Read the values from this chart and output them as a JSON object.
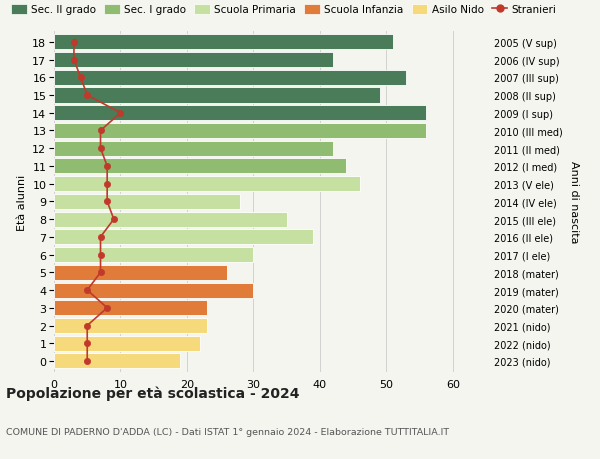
{
  "ages": [
    18,
    17,
    16,
    15,
    14,
    13,
    12,
    11,
    10,
    9,
    8,
    7,
    6,
    5,
    4,
    3,
    2,
    1,
    0
  ],
  "years": [
    "2005 (V sup)",
    "2006 (IV sup)",
    "2007 (III sup)",
    "2008 (II sup)",
    "2009 (I sup)",
    "2010 (III med)",
    "2011 (II med)",
    "2012 (I med)",
    "2013 (V ele)",
    "2014 (IV ele)",
    "2015 (III ele)",
    "2016 (II ele)",
    "2017 (I ele)",
    "2018 (mater)",
    "2019 (mater)",
    "2020 (mater)",
    "2021 (nido)",
    "2022 (nido)",
    "2023 (nido)"
  ],
  "bar_values": [
    51,
    42,
    53,
    49,
    56,
    56,
    42,
    44,
    46,
    28,
    35,
    39,
    30,
    26,
    30,
    23,
    23,
    22,
    19
  ],
  "stranieri": [
    3,
    3,
    4,
    5,
    10,
    7,
    7,
    8,
    8,
    8,
    9,
    7,
    7,
    7,
    5,
    8,
    5,
    5,
    5
  ],
  "bar_colors": [
    "#4a7c59",
    "#4a7c59",
    "#4a7c59",
    "#4a7c59",
    "#4a7c59",
    "#8fbc70",
    "#8fbc70",
    "#8fbc70",
    "#c5e0a0",
    "#c5e0a0",
    "#c5e0a0",
    "#c5e0a0",
    "#c5e0a0",
    "#e07b39",
    "#e07b39",
    "#e07b39",
    "#f5d97a",
    "#f5d97a",
    "#f5d97a"
  ],
  "legend_colors": [
    "#4a7c59",
    "#8fbc70",
    "#c5e0a0",
    "#e07b39",
    "#f5d97a",
    "#c0392b"
  ],
  "legend_labels": [
    "Sec. II grado",
    "Sec. I grado",
    "Scuola Primaria",
    "Scuola Infanzia",
    "Asilo Nido",
    "Stranieri"
  ],
  "ylabel_left": "Età alunni",
  "ylabel_right": "Anni di nascita",
  "title": "Popolazione per età scolastica - 2024",
  "subtitle": "COMUNE DI PADERNO D'ADDA (LC) - Dati ISTAT 1° gennaio 2024 - Elaborazione TUTTITALIA.IT",
  "xlim": [
    0,
    65
  ],
  "xticks": [
    0,
    10,
    20,
    30,
    40,
    50,
    60
  ],
  "bg_color": "#f5f5f0",
  "bar_height": 0.85,
  "stranieri_color": "#c0392b",
  "grid_color": "#cccccc"
}
